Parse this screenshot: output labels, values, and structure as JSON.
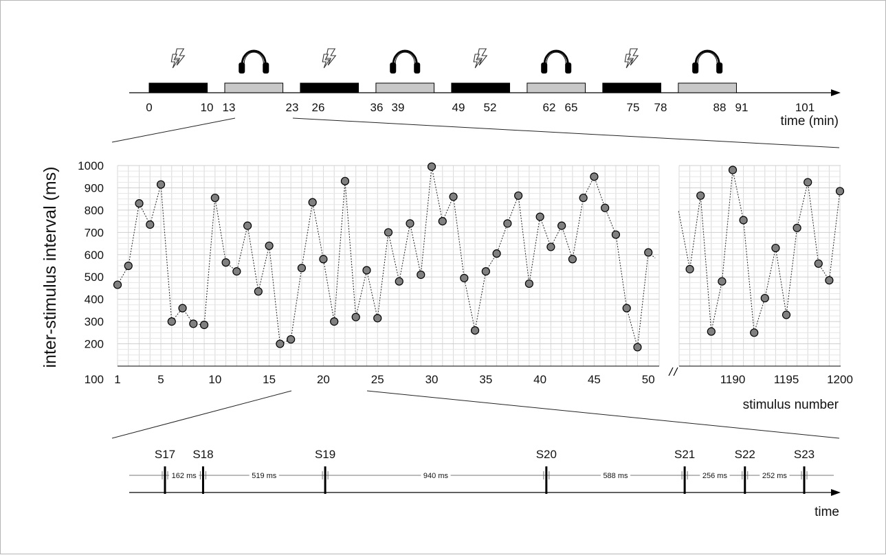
{
  "schedule": {
    "blocks": [
      {
        "start": 0,
        "end": 10,
        "kind": "shock"
      },
      {
        "start": 13,
        "end": 23,
        "kind": "audio"
      },
      {
        "start": 26,
        "end": 36,
        "kind": "shock"
      },
      {
        "start": 39,
        "end": 49,
        "kind": "audio"
      },
      {
        "start": 52,
        "end": 62,
        "kind": "shock"
      },
      {
        "start": 65,
        "end": 75,
        "kind": "audio"
      },
      {
        "start": 78,
        "end": 88,
        "kind": "shock"
      },
      {
        "start": 91,
        "end": 101,
        "kind": "audio"
      }
    ],
    "icons": {
      "shock": "lightning-bolt-icon",
      "audio": "headphones-icon"
    },
    "colors": {
      "shock": "#000000",
      "audio": "#c8c8c8"
    },
    "axis_label": "time (min)",
    "ticks": [
      "0",
      "10",
      "13",
      "23",
      "26",
      "36",
      "39",
      "49",
      "52",
      "62",
      "65",
      "75",
      "78",
      "88",
      "91",
      "101"
    ]
  },
  "chart_data": {
    "type": "scatter",
    "ylabel": "inter-stimulus interval (ms)",
    "xlabel": "stimulus number",
    "ylim": [
      100,
      1000
    ],
    "yticks": [
      100,
      200,
      300,
      400,
      500,
      600,
      700,
      800,
      900,
      1000
    ],
    "grid": true,
    "axis_break": true,
    "x_ticks_left": [
      1,
      5,
      10,
      15,
      20,
      25,
      30,
      35,
      40,
      45,
      50
    ],
    "x_ticks_right": [
      1190,
      1195,
      1200
    ],
    "point_color": "#808080",
    "series": [
      {
        "x": [
          1,
          2,
          3,
          4,
          5,
          6,
          7,
          8,
          9,
          10,
          11,
          12,
          13,
          14,
          15,
          16,
          17,
          18,
          19,
          20,
          21,
          22,
          23,
          24,
          25,
          26,
          27,
          28,
          29,
          30,
          31,
          32,
          33,
          34,
          35,
          36,
          37,
          38,
          39,
          40,
          41,
          42,
          43,
          44,
          45,
          46,
          47,
          48,
          49,
          50
        ],
        "values": [
          465,
          550,
          830,
          735,
          915,
          300,
          360,
          290,
          285,
          855,
          565,
          525,
          730,
          435,
          640,
          200,
          220,
          540,
          835,
          580,
          300,
          930,
          320,
          530,
          315,
          700,
          480,
          740,
          510,
          995,
          750,
          860,
          495,
          260,
          525,
          605,
          740,
          865,
          470,
          770,
          635,
          730,
          580,
          855,
          950,
          810,
          690,
          360,
          185,
          610
        ]
      },
      {
        "x": [
          1186,
          1187,
          1188,
          1189,
          1190,
          1191,
          1192,
          1193,
          1194,
          1195,
          1196,
          1197,
          1198,
          1199,
          1200
        ],
        "values": [
          535,
          865,
          255,
          480,
          980,
          755,
          250,
          405,
          630,
          330,
          720,
          925,
          560,
          485,
          885
        ]
      }
    ]
  },
  "timeline": {
    "axis_label": "time",
    "stimuli": [
      {
        "label": "S17",
        "t": 0
      },
      {
        "label": "S18",
        "t": 162
      },
      {
        "label": "S19",
        "t": 681
      },
      {
        "label": "S20",
        "t": 1621
      },
      {
        "label": "S21",
        "t": 2209
      },
      {
        "label": "S22",
        "t": 2465
      },
      {
        "label": "S23",
        "t": 2717
      }
    ],
    "intervals": [
      "162 ms",
      "519 ms",
      "940 ms",
      "588 ms",
      "256 ms",
      "252 ms"
    ]
  }
}
